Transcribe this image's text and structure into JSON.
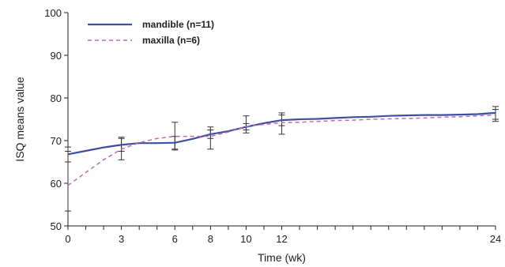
{
  "chart_data": {
    "type": "line",
    "title": "",
    "xlabel": "Time (wk)",
    "ylabel": "ISQ means value",
    "xlim": [
      0,
      24
    ],
    "ylim": [
      50,
      100
    ],
    "x_ticks": [
      0,
      3,
      6,
      8,
      10,
      12,
      24
    ],
    "y_ticks": [
      50,
      60,
      70,
      80,
      90,
      100
    ],
    "grid": false,
    "legend_position": "top-left",
    "series": [
      {
        "name": "mandible (n=11)",
        "color": "#3d4fa0",
        "style": "solid",
        "x": [
          0,
          1,
          2,
          3,
          4,
          5,
          6,
          7,
          8,
          9,
          10,
          11,
          12,
          13,
          14,
          15,
          16,
          17,
          18,
          19,
          20,
          21,
          22,
          23,
          24
        ],
        "y": [
          66.8,
          67.6,
          68.4,
          69.0,
          69.4,
          69.4,
          69.5,
          70.4,
          71.5,
          72.2,
          73.2,
          74.1,
          74.8,
          75.0,
          75.1,
          75.3,
          75.5,
          75.6,
          75.8,
          75.9,
          76.0,
          76.0,
          76.1,
          76.2,
          76.5
        ],
        "error_x": [
          0,
          3,
          6,
          8,
          10,
          12,
          24
        ],
        "error_low": [
          65.0,
          67.5,
          68.0,
          70.5,
          72.5,
          73.5,
          75.0
        ],
        "error_high": [
          68.5,
          70.5,
          71.0,
          72.5,
          74.0,
          76.0,
          78.0
        ]
      },
      {
        "name": "maxilla (n=6)",
        "color": "#c46ab0",
        "style": "dashed",
        "x": [
          0,
          1,
          2,
          3,
          4,
          5,
          6,
          7,
          8,
          9,
          10,
          11,
          12,
          13,
          14,
          15,
          16,
          17,
          18,
          19,
          20,
          21,
          22,
          23,
          24
        ],
        "y": [
          59.5,
          62.5,
          65.5,
          68.0,
          69.5,
          70.5,
          71.0,
          71.0,
          71.0,
          72.0,
          73.3,
          73.8,
          74.2,
          74.3,
          74.5,
          74.7,
          74.8,
          75.0,
          75.1,
          75.2,
          75.3,
          75.5,
          75.6,
          75.8,
          76.0
        ],
        "error_x": [
          0,
          3,
          6,
          8,
          10,
          12,
          24
        ],
        "error_low": [
          53.5,
          65.5,
          67.8,
          68.0,
          71.8,
          71.5,
          74.5
        ],
        "error_high": [
          67.5,
          70.8,
          74.3,
          73.2,
          75.8,
          76.5,
          77.3
        ]
      }
    ]
  }
}
